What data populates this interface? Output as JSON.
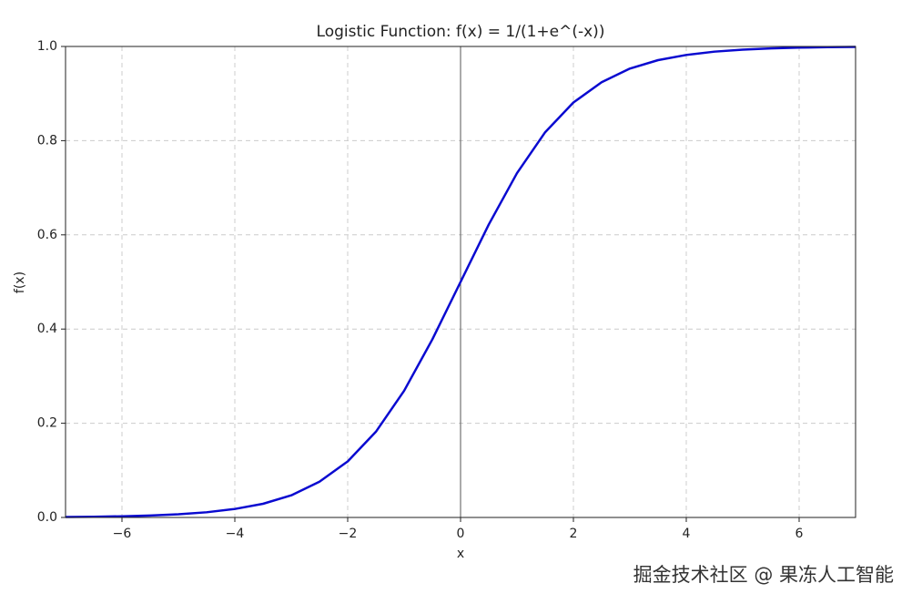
{
  "chart_data": {
    "type": "line",
    "title": "Logistic Function: f(x) = 1/(1+e^(-x))",
    "xlabel": "x",
    "ylabel": "f(x)",
    "x": [
      -7,
      -6.5,
      -6,
      -5.5,
      -5,
      -4.5,
      -4,
      -3.5,
      -3,
      -2.5,
      -2,
      -1.5,
      -1,
      -0.5,
      0,
      0.5,
      1,
      1.5,
      2,
      2.5,
      3,
      3.5,
      4,
      4.5,
      5,
      5.5,
      6,
      6.5,
      7
    ],
    "series": [
      {
        "color": "#0a0ad0",
        "values": [
          0.0009,
          0.0015,
          0.0025,
          0.0041,
          0.0067,
          0.011,
          0.018,
          0.029,
          0.047,
          0.076,
          0.119,
          0.182,
          0.269,
          0.378,
          0.5,
          0.622,
          0.731,
          0.818,
          0.881,
          0.924,
          0.953,
          0.971,
          0.982,
          0.989,
          0.9933,
          0.9959,
          0.9975,
          0.9985,
          0.9991
        ]
      }
    ],
    "xlim": [
      -7,
      7
    ],
    "ylim": [
      0,
      1
    ],
    "xticks": [
      {
        "value": -6,
        "label": "−6"
      },
      {
        "value": -4,
        "label": "−4"
      },
      {
        "value": -2,
        "label": "−2"
      },
      0,
      2,
      4,
      6
    ],
    "yticks": [
      {
        "value": 0,
        "label": "0.0"
      },
      0.2,
      0.4,
      0.6,
      0.8,
      {
        "value": 1,
        "label": "1.0"
      }
    ],
    "grid": true,
    "vline": 0,
    "watermark": "掘金技术社区 @ 果冻人工智能"
  }
}
